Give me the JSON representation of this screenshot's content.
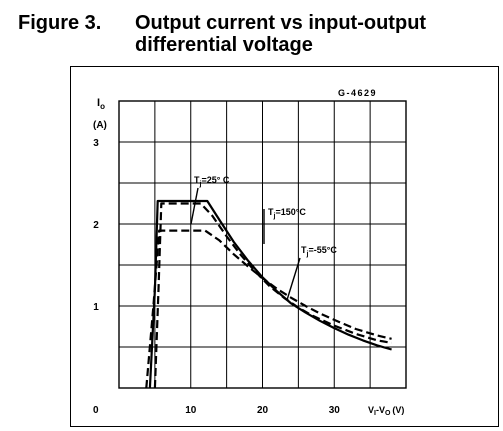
{
  "figure": {
    "number": "Figure 3.",
    "title": "Output current vs input-output differential voltage"
  },
  "chart_data": {
    "type": "line",
    "code": "G-4629",
    "ylabel_main": "I",
    "ylabel_sub": "o",
    "ylabel_unit": "(A)",
    "xlabel": "V_I-V_O(V)",
    "xlabel_prefix": "V",
    "xlabel_sub1": "I",
    "xlabel_mid": "-V",
    "xlabel_sub2": "O",
    "xlabel_unit": "(V)",
    "xlim": [
      0,
      40
    ],
    "ylim": [
      0,
      3.5
    ],
    "x_ticks": [
      {
        "v": 10,
        "label": "10"
      },
      {
        "v": 20,
        "label": "20"
      },
      {
        "v": 30,
        "label": "30"
      }
    ],
    "y_ticks": [
      {
        "v": 1,
        "label": "1"
      },
      {
        "v": 2,
        "label": "2"
      },
      {
        "v": 3,
        "label": "3"
      }
    ],
    "origin_label": "0",
    "grid": true,
    "series": [
      {
        "name": "Tj=25°C",
        "style": "dashed",
        "x": [
          5.0,
          5.5,
          5.9,
          11.4,
          13.0,
          15.0,
          17.0,
          19.0,
          21.0,
          23.0,
          25.0,
          27.0,
          30.0,
          33.0,
          36.0,
          38.0
        ],
        "y": [
          0.0,
          1.2,
          2.25,
          2.25,
          2.1,
          1.85,
          1.62,
          1.42,
          1.24,
          1.1,
          0.98,
          0.88,
          0.76,
          0.66,
          0.58,
          0.55
        ]
      },
      {
        "name": "Tj=150°C",
        "style": "solid",
        "x": [
          4.3,
          5.0,
          5.4,
          12.3,
          14.0,
          16.0,
          18.0,
          20.0,
          22.0,
          24.0,
          26.0,
          28.0,
          30.0,
          32.0,
          34.0,
          36.0,
          38.0
        ],
        "y": [
          0.0,
          1.2,
          2.28,
          2.28,
          2.05,
          1.78,
          1.55,
          1.35,
          1.18,
          1.03,
          0.92,
          0.82,
          0.73,
          0.65,
          0.58,
          0.52,
          0.47
        ]
      },
      {
        "name": "Tj=-55°C",
        "style": "dashed",
        "x": [
          3.8,
          4.8,
          5.6,
          12.0,
          14.0,
          16.0,
          18.0,
          20.0,
          22.0,
          24.0,
          26.0,
          28.0,
          30.0,
          33.0,
          36.0,
          38.0
        ],
        "y": [
          0.0,
          1.0,
          1.92,
          1.92,
          1.8,
          1.63,
          1.48,
          1.34,
          1.21,
          1.1,
          1.0,
          0.91,
          0.83,
          0.72,
          0.64,
          0.6
        ]
      }
    ],
    "annotations": [
      {
        "main": "T",
        "sub": "j",
        "rest": "=25° C"
      },
      {
        "main": "T",
        "sub": "j",
        "rest": "=150°C"
      },
      {
        "main": "T",
        "sub": "j",
        "rest": "=-55°C"
      }
    ]
  }
}
